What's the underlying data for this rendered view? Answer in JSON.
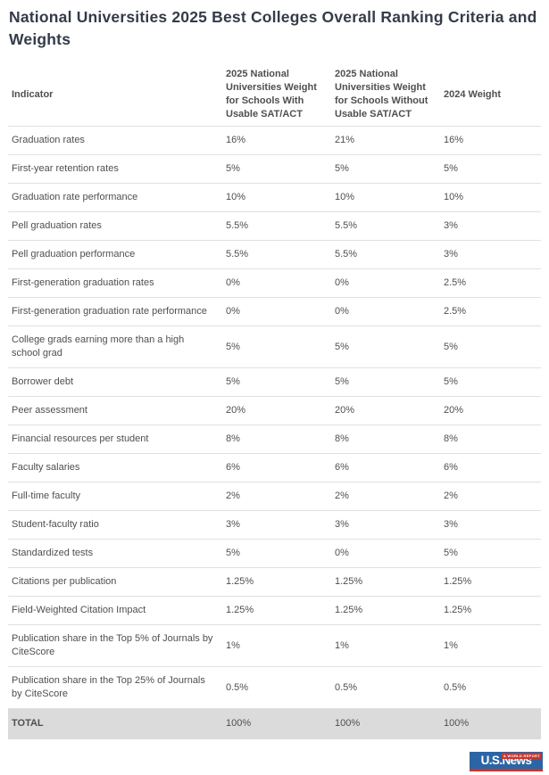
{
  "page": {
    "title": "National Universities 2025 Best Colleges Overall Ranking Criteria and Weights"
  },
  "chart_data": {
    "type": "table",
    "title": "National Universities 2025 Best Colleges Overall Ranking Criteria and Weights",
    "columns": [
      "Indicator",
      "2025 National Universities Weight for Schools With Usable SAT/ACT",
      "2025 National Universities Weight for Schools Without Usable SAT/ACT",
      "2024 Weight"
    ],
    "rows": [
      {
        "indicator": "Graduation rates",
        "weight_2025_with_sat_act": "16%",
        "weight_2025_without_sat_act": "21%",
        "weight_2024": "16%"
      },
      {
        "indicator": "First-year retention rates",
        "weight_2025_with_sat_act": "5%",
        "weight_2025_without_sat_act": "5%",
        "weight_2024": "5%"
      },
      {
        "indicator": "Graduation rate performance",
        "weight_2025_with_sat_act": "10%",
        "weight_2025_without_sat_act": "10%",
        "weight_2024": "10%"
      },
      {
        "indicator": "Pell graduation rates",
        "weight_2025_with_sat_act": "5.5%",
        "weight_2025_without_sat_act": "5.5%",
        "weight_2024": "3%"
      },
      {
        "indicator": "Pell graduation performance",
        "weight_2025_with_sat_act": "5.5%",
        "weight_2025_without_sat_act": "5.5%",
        "weight_2024": "3%"
      },
      {
        "indicator": "First-generation graduation rates",
        "weight_2025_with_sat_act": "0%",
        "weight_2025_without_sat_act": "0%",
        "weight_2024": "2.5%"
      },
      {
        "indicator": "First-generation graduation rate performance",
        "weight_2025_with_sat_act": "0%",
        "weight_2025_without_sat_act": "0%",
        "weight_2024": "2.5%"
      },
      {
        "indicator": "College grads earning more than a high school grad",
        "weight_2025_with_sat_act": "5%",
        "weight_2025_without_sat_act": "5%",
        "weight_2024": "5%"
      },
      {
        "indicator": "Borrower debt",
        "weight_2025_with_sat_act": "5%",
        "weight_2025_without_sat_act": "5%",
        "weight_2024": "5%"
      },
      {
        "indicator": "Peer assessment",
        "weight_2025_with_sat_act": "20%",
        "weight_2025_without_sat_act": "20%",
        "weight_2024": "20%"
      },
      {
        "indicator": "Financial resources per student",
        "weight_2025_with_sat_act": "8%",
        "weight_2025_without_sat_act": "8%",
        "weight_2024": "8%"
      },
      {
        "indicator": "Faculty salaries",
        "weight_2025_with_sat_act": "6%",
        "weight_2025_without_sat_act": "6%",
        "weight_2024": "6%"
      },
      {
        "indicator": "Full-time faculty",
        "weight_2025_with_sat_act": "2%",
        "weight_2025_without_sat_act": "2%",
        "weight_2024": "2%"
      },
      {
        "indicator": "Student-faculty ratio",
        "weight_2025_with_sat_act": "3%",
        "weight_2025_without_sat_act": "3%",
        "weight_2024": "3%"
      },
      {
        "indicator": "Standardized tests",
        "weight_2025_with_sat_act": "5%",
        "weight_2025_without_sat_act": "0%",
        "weight_2024": "5%"
      },
      {
        "indicator": "Citations per publication",
        "weight_2025_with_sat_act": "1.25%",
        "weight_2025_without_sat_act": "1.25%",
        "weight_2024": "1.25%"
      },
      {
        "indicator": "Field-Weighted Citation Impact",
        "weight_2025_with_sat_act": "1.25%",
        "weight_2025_without_sat_act": "1.25%",
        "weight_2024": "1.25%"
      },
      {
        "indicator": "Publication share in the Top 5% of Journals by CiteScore",
        "weight_2025_with_sat_act": "1%",
        "weight_2025_without_sat_act": "1%",
        "weight_2024": "1%"
      },
      {
        "indicator": "Publication share in the Top 25% of Journals by CiteScore",
        "weight_2025_with_sat_act": "0.5%",
        "weight_2025_without_sat_act": "0.5%",
        "weight_2024": "0.5%"
      }
    ],
    "total_row": {
      "indicator": "TOTAL",
      "weight_2025_with_sat_act": "100%",
      "weight_2025_without_sat_act": "100%",
      "weight_2024": "100%"
    },
    "layout": {
      "grid": "horizontal-row-dividers-only",
      "total_row_highlighted": true
    }
  },
  "logo": {
    "brand": "U.S.News",
    "tagline": "& WORLD REPORT"
  },
  "colors": {
    "title_text": "#343b49",
    "table_text": "#4f4f4f",
    "row_divider": "#e0e0e0",
    "total_row_bg": "#dbdbdb",
    "logo_blue": "#2b65a5",
    "logo_red": "#c9362c"
  }
}
